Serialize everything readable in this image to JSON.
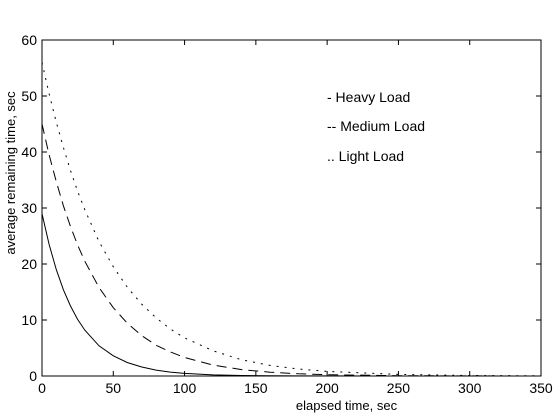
{
  "chart_data": {
    "type": "line",
    "title": "",
    "xlabel": "elapsed time, sec",
    "ylabel": "average remaining time, sec",
    "xlim": [
      0,
      350
    ],
    "ylim": [
      0,
      60
    ],
    "xticks": [
      0,
      50,
      100,
      150,
      200,
      250,
      300,
      350
    ],
    "yticks": [
      0,
      10,
      20,
      30,
      40,
      50,
      60
    ],
    "grid": false,
    "legend_position": "top-right",
    "legend_entries": [
      "-  Heavy Load",
      "--  Medium Load",
      ".. Light Load"
    ],
    "series": [
      {
        "name": "Heavy Load",
        "style": "solid",
        "x": [
          0,
          5,
          10,
          15,
          20,
          25,
          30,
          40,
          50,
          60,
          70,
          80,
          90,
          100,
          120,
          140,
          160,
          180,
          200,
          250,
          300,
          350
        ],
        "y": [
          29,
          23.5,
          19,
          15.4,
          12.5,
          10.1,
          8.2,
          5.4,
          3.6,
          2.4,
          1.6,
          1.05,
          0.7,
          0.46,
          0.2,
          0.09,
          0.04,
          0.02,
          0.01,
          0,
          0,
          0
        ]
      },
      {
        "name": "Medium Load",
        "style": "dashed",
        "x": [
          0,
          5,
          10,
          15,
          20,
          25,
          30,
          40,
          50,
          60,
          70,
          80,
          90,
          100,
          120,
          140,
          160,
          180,
          200,
          250,
          300,
          350
        ],
        "y": [
          45,
          39.5,
          34.7,
          30.4,
          26.7,
          23.4,
          20.5,
          15.8,
          12.2,
          9.4,
          7.2,
          5.5,
          4.3,
          3.3,
          1.95,
          1.15,
          0.68,
          0.4,
          0.24,
          0.06,
          0.01,
          0
        ]
      },
      {
        "name": "Light Load",
        "style": "dotted",
        "x": [
          0,
          5,
          10,
          15,
          20,
          25,
          30,
          40,
          50,
          60,
          70,
          80,
          90,
          100,
          120,
          140,
          160,
          180,
          200,
          250,
          300,
          350
        ],
        "y": [
          56,
          50.4,
          45.3,
          40.8,
          36.7,
          33,
          29.7,
          24,
          19.5,
          15.8,
          12.8,
          10.4,
          8.4,
          6.8,
          4.5,
          2.9,
          1.9,
          1.25,
          0.82,
          0.28,
          0.09,
          0.03
        ]
      }
    ]
  }
}
